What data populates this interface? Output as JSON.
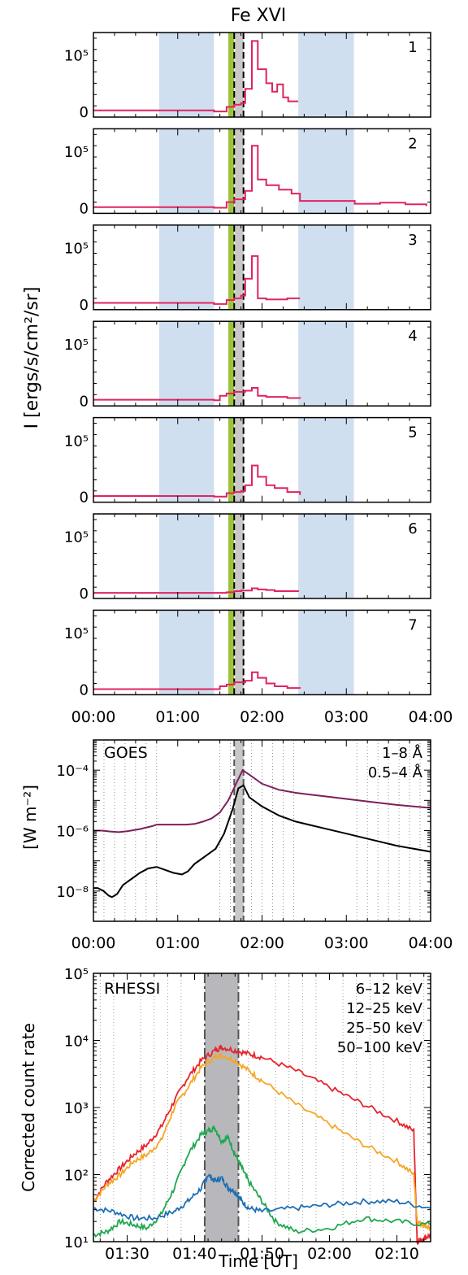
{
  "chart_data": [
    {
      "type": "line",
      "title": "Fe XVI",
      "ylabel": "I [ergs/s/cm²/sr]",
      "x_ticks": [
        "00:00",
        "01:00",
        "02:00",
        "03:00",
        "04:00"
      ],
      "xlim_hours": [
        0,
        4
      ],
      "y_ticks": [
        "0",
        "10⁵"
      ],
      "ylim": [
        -10000,
        140000
      ],
      "shaded_bands_hours": [
        [
          0.78,
          1.43
        ],
        [
          2.43,
          3.09
        ]
      ],
      "green_band_hours": [
        1.6,
        1.67
      ],
      "gray_band_hours": [
        1.68,
        1.78
      ],
      "dashed_lines_hours": [
        1.67,
        1.78
      ],
      "line_color": "#e0245e",
      "band_color": "#cfdff0",
      "green_color": "#9dc33b",
      "panels": [
        {
          "label": "1",
          "gaps_after_hours": [
            2.43
          ],
          "x": [
            0,
            0.78,
            1.43,
            1.58,
            1.67,
            1.75,
            1.8,
            1.88,
            1.95,
            2.05,
            2.12,
            2.18,
            2.25,
            2.31,
            2.43
          ],
          "y": [
            2000,
            2000,
            0,
            8000,
            12000,
            15000,
            40000,
            125000,
            75000,
            50000,
            35000,
            48000,
            25000,
            18000,
            18000
          ]
        },
        {
          "label": "2",
          "gaps_after_hours": [],
          "x": [
            0,
            0.78,
            1.43,
            1.58,
            1.67,
            1.75,
            1.8,
            1.88,
            1.95,
            2.05,
            2.2,
            2.35,
            2.45,
            3.1,
            3.4,
            3.7,
            3.95
          ],
          "y": [
            1000,
            1000,
            0,
            10000,
            15000,
            15000,
            30000,
            110000,
            50000,
            40000,
            32000,
            25000,
            12000,
            7000,
            9000,
            6000,
            3000
          ]
        },
        {
          "label": "3",
          "gaps_after_hours": [],
          "x": [
            0,
            0.78,
            1.43,
            1.58,
            1.67,
            1.75,
            1.8,
            1.88,
            1.95,
            2.05,
            2.3,
            2.45
          ],
          "y": [
            2000,
            2000,
            0,
            7000,
            10000,
            15000,
            45000,
            85000,
            10000,
            8000,
            10000,
            10000
          ]
        },
        {
          "label": "4",
          "gaps_after_hours": [],
          "x": [
            0,
            0.78,
            1.43,
            1.5,
            1.58,
            1.67,
            1.75,
            1.8,
            1.88,
            1.95,
            2.05,
            2.3,
            2.45
          ],
          "y": [
            1000,
            1000,
            0,
            8000,
            12000,
            15000,
            15000,
            17000,
            22000,
            8000,
            6000,
            4000,
            3000
          ]
        },
        {
          "label": "5",
          "gaps_after_hours": [],
          "x": [
            0,
            0.78,
            1.43,
            1.58,
            1.67,
            1.75,
            1.8,
            1.88,
            1.95,
            2.05,
            2.15,
            2.3,
            2.45
          ],
          "y": [
            1000,
            1000,
            0,
            6000,
            8000,
            10000,
            20000,
            55000,
            35000,
            20000,
            15000,
            8000,
            3000
          ]
        },
        {
          "label": "6",
          "gaps_after_hours": [
            2.43
          ],
          "x": [
            0,
            0.78,
            1.43,
            1.58,
            1.67,
            1.75,
            1.8,
            1.88,
            1.95,
            2.05,
            2.15,
            2.43
          ],
          "y": [
            0,
            0,
            0,
            1000,
            3000,
            4000,
            4000,
            8000,
            6000,
            5000,
            3000,
            2000
          ]
        },
        {
          "label": "7",
          "gaps_after_hours": [],
          "x": [
            0,
            0.78,
            1.43,
            1.5,
            1.58,
            1.67,
            1.75,
            1.8,
            1.88,
            1.95,
            2.05,
            2.15,
            2.3,
            2.45
          ],
          "y": [
            0,
            0,
            0,
            5000,
            8000,
            12000,
            12000,
            15000,
            30000,
            20000,
            10000,
            5000,
            2000,
            1000
          ]
        }
      ]
    },
    {
      "type": "line",
      "label": "GOES",
      "ylabel": "[W m⁻²]",
      "log_y": true,
      "ylim_exp": [
        -9,
        -3
      ],
      "y_ticks": [
        "10⁻⁸",
        "10⁻⁶",
        "10⁻⁴"
      ],
      "x_ticks": [
        "00:00",
        "01:00",
        "02:00",
        "03:00",
        "04:00"
      ],
      "xlim_hours": [
        0,
        4
      ],
      "dashed_lines_hours": [
        1.67,
        1.78
      ],
      "series": [
        {
          "name": "1–8 Å",
          "color": "#7d1f5a",
          "x": [
            0,
            0.1,
            0.2,
            0.3,
            0.4,
            0.55,
            0.7,
            0.75,
            0.85,
            1.0,
            1.1,
            1.2,
            1.3,
            1.4,
            1.5,
            1.6,
            1.7,
            1.77,
            1.85,
            2.0,
            2.2,
            2.4,
            2.7,
            3.0,
            3.3,
            3.6,
            4.0
          ],
          "y_log10": [
            -6.0,
            -6.0,
            -6.03,
            -6.05,
            -6.02,
            -5.95,
            -5.85,
            -5.8,
            -5.8,
            -5.8,
            -5.8,
            -5.78,
            -5.7,
            -5.6,
            -5.4,
            -5.0,
            -4.4,
            -4.0,
            -4.15,
            -4.45,
            -4.65,
            -4.75,
            -4.85,
            -4.95,
            -5.05,
            -5.15,
            -5.25
          ]
        },
        {
          "name": "0.5–4 Å",
          "color": "#000000",
          "x": [
            0,
            0.05,
            0.12,
            0.18,
            0.22,
            0.28,
            0.35,
            0.45,
            0.55,
            0.65,
            0.75,
            0.85,
            0.95,
            1.05,
            1.12,
            1.2,
            1.3,
            1.45,
            1.55,
            1.65,
            1.72,
            1.78,
            1.85,
            2.0,
            2.2,
            2.4,
            2.7,
            3.0,
            3.3,
            3.6,
            4.0
          ],
          "y_log10": [
            -7.9,
            -7.9,
            -8.0,
            -8.15,
            -8.2,
            -8.1,
            -7.8,
            -7.6,
            -7.4,
            -7.25,
            -7.2,
            -7.3,
            -7.4,
            -7.45,
            -7.35,
            -7.1,
            -6.9,
            -6.6,
            -6.1,
            -5.3,
            -4.6,
            -4.5,
            -4.9,
            -5.2,
            -5.5,
            -5.7,
            -5.9,
            -6.1,
            -6.3,
            -6.5,
            -6.7
          ]
        }
      ]
    },
    {
      "type": "line",
      "label": "RHESSI",
      "ylabel": "Corrected count rate",
      "xlabel": "Time [UT]",
      "log_y": true,
      "ylim_exp": [
        1,
        5
      ],
      "y_ticks": [
        "10¹",
        "10²",
        "10³",
        "10⁴",
        "10⁵"
      ],
      "x_ticks": [
        "01:30",
        "01:40",
        "01:50",
        "02:00",
        "02:10"
      ],
      "xlim_min": [
        85,
        135
      ],
      "gray_band_min": [
        101.5,
        106.5
      ],
      "series": [
        {
          "name": "6–12 keV",
          "color": "#e8232b",
          "x": [
            85,
            87,
            89,
            91,
            93,
            95,
            97,
            99,
            101,
            103,
            104,
            106,
            108,
            110,
            115,
            120,
            125,
            130,
            132.5,
            133,
            134,
            135
          ],
          "y_log10": [
            1.6,
            1.9,
            2.1,
            2.3,
            2.45,
            2.7,
            3.1,
            3.45,
            3.7,
            3.85,
            3.9,
            3.85,
            3.8,
            3.75,
            3.55,
            3.3,
            3.05,
            2.8,
            2.65,
            1.0,
            1.05,
            1.1
          ]
        },
        {
          "name": "12–25 keV",
          "color": "#f5a623",
          "x": [
            85,
            87,
            89,
            91,
            93,
            95,
            97,
            99,
            101,
            103,
            104,
            106,
            108,
            110,
            115,
            120,
            125,
            130,
            132.5,
            133,
            134,
            135
          ],
          "y_log10": [
            1.6,
            1.85,
            2.0,
            2.2,
            2.3,
            2.5,
            3.0,
            3.3,
            3.6,
            3.75,
            3.78,
            3.7,
            3.55,
            3.4,
            3.05,
            2.75,
            2.45,
            2.2,
            2.0,
            1.3,
            1.25,
            1.2
          ]
        },
        {
          "name": "25–50 keV",
          "color": "#1fa84f",
          "x": [
            85,
            87,
            89,
            91,
            93,
            95,
            97,
            99,
            101,
            102,
            103,
            104,
            105,
            106,
            107,
            108,
            110,
            112,
            115,
            120,
            125,
            130,
            135
          ],
          "y_log10": [
            1.1,
            1.15,
            1.3,
            1.25,
            1.2,
            1.4,
            1.8,
            2.3,
            2.6,
            2.65,
            2.7,
            2.5,
            2.55,
            2.3,
            2.1,
            1.9,
            1.6,
            1.3,
            1.15,
            1.2,
            1.35,
            1.3,
            1.25
          ]
        },
        {
          "name": "50–100 keV",
          "color": "#1e6fb5",
          "x": [
            85,
            88,
            91,
            94,
            97,
            99,
            101,
            102,
            103,
            104,
            105,
            106,
            107,
            108,
            110,
            115,
            120,
            125,
            130,
            135
          ],
          "y_log10": [
            1.5,
            1.45,
            1.35,
            1.35,
            1.45,
            1.6,
            1.8,
            2.0,
            1.9,
            1.95,
            1.8,
            1.75,
            1.6,
            1.5,
            1.45,
            1.5,
            1.55,
            1.6,
            1.6,
            1.5
          ]
        }
      ]
    }
  ]
}
